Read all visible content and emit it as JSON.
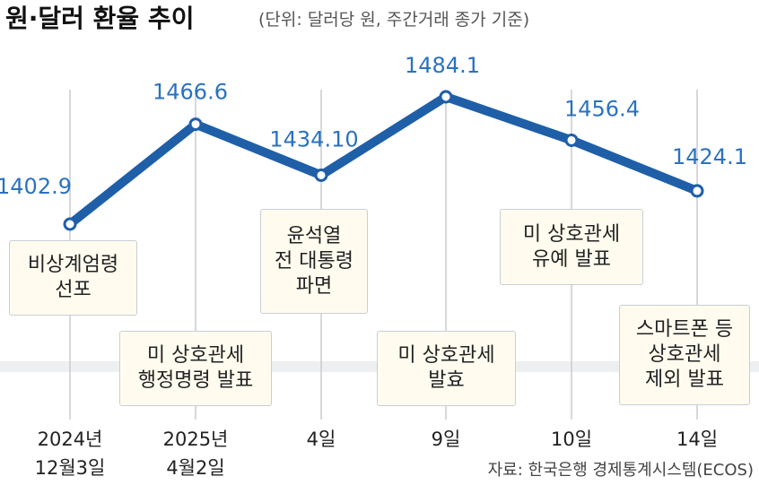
{
  "chart_data": {
    "type": "line",
    "title": "원·달러 환율 추이",
    "subtitle": "(단위: 달러당 원, 주간거래 종가 기준)",
    "categories": [
      "2024년\n12월3일",
      "2025년\n4월2일",
      "4일",
      "9일",
      "10일",
      "14일"
    ],
    "series": [
      {
        "name": "원·달러 환율",
        "color": "#1f5fa8",
        "values": [
          1402.9,
          1466.6,
          1434.1,
          1484.1,
          1456.4,
          1424.1
        ],
        "value_labels": [
          "1402.9",
          "1466.6",
          "1434.10",
          "1484.1",
          "1456.4",
          "1424.1"
        ]
      }
    ],
    "annotations": [
      "비상계엄령\n선포",
      "미 상호관세\n행정명령 발표",
      "윤석열\n전 대통령\n파면",
      "미 상호관세\n발효",
      "미 상호관세\n유예 발표",
      "스마트폰 등\n상호관세\n제외 발표"
    ],
    "source": "자료: 한국은행 경제통계시스템(ECOS)"
  }
}
